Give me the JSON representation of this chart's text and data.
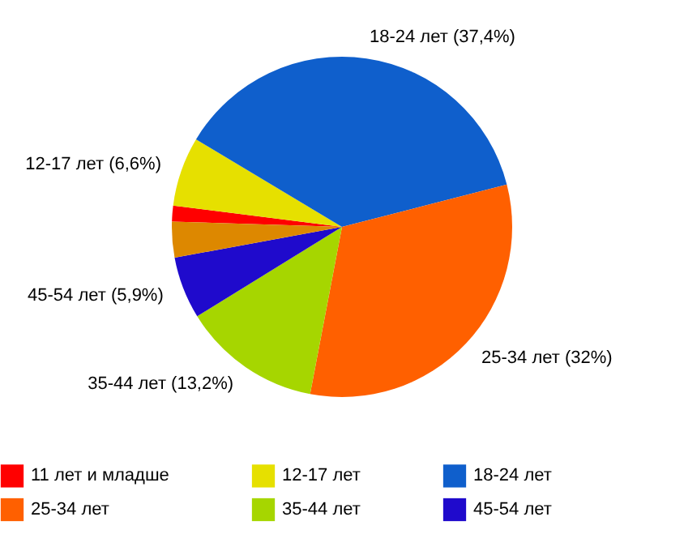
{
  "chart_data": {
    "type": "pie",
    "categories": [
      "11 лет и младше",
      "12-17 лет",
      "18-24 лет",
      "25-34 лет",
      "35-44 лет",
      "45-54 лет",
      null
    ],
    "values": [
      1.5,
      6.6,
      37.4,
      32,
      13.2,
      5.9,
      3.4
    ],
    "colors": [
      "#ff0000",
      "#e6e000",
      "#0f5fcc",
      "#ff6000",
      "#a6d600",
      "#1f0acc",
      "#dd8800"
    ],
    "value_labels": [
      null,
      "12-17 лет (6,6%)",
      "18-24 лет (37,4%)",
      "25-34 лет (32%)",
      "35-44 лет (13,2%)",
      "45-54 лет (5,9%)",
      null
    ],
    "legend": "bottom"
  }
}
